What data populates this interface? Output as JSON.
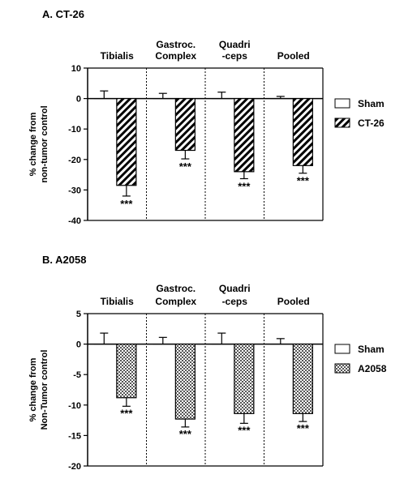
{
  "chart_data": [
    {
      "type": "bar",
      "title": "A.  CT-26",
      "ylabel": [
        "% change from",
        "non-tumor control"
      ],
      "ylim": [
        -40,
        10
      ],
      "yticks": [
        "10",
        "0",
        "-10",
        "-20",
        "-30",
        "-40"
      ],
      "categories": [
        [
          "Tibialis"
        ],
        [
          "Gastroc.",
          "Complex"
        ],
        [
          "Quadri",
          "-ceps"
        ],
        [
          "Pooled"
        ]
      ],
      "series": [
        {
          "name": "Sham",
          "values": [
            0,
            0,
            0,
            0
          ],
          "error": [
            2.5,
            1.7,
            2.1,
            0.7
          ],
          "fill": "white"
        },
        {
          "name": "CT-26",
          "values": [
            -28.5,
            -17,
            -24,
            -22
          ],
          "error": [
            3.5,
            2.8,
            2.3,
            2.5
          ],
          "fill": "stripes"
        }
      ],
      "annotations": [
        "***",
        "***",
        "***",
        "***"
      ],
      "legend": "right"
    },
    {
      "type": "bar",
      "title": "B.  A2058",
      "ylabel": [
        "% change from",
        "Non-Tumor control"
      ],
      "ylim": [
        -20,
        5
      ],
      "yticks": [
        "5",
        "0",
        "-5",
        "-10",
        "-15",
        "-20"
      ],
      "categories": [
        [
          "Tibialis"
        ],
        [
          "Gastroc.",
          "Complex"
        ],
        [
          "Quadri",
          "-ceps"
        ],
        [
          "Pooled"
        ]
      ],
      "series": [
        {
          "name": "Sham",
          "values": [
            0,
            0,
            0,
            0
          ],
          "error": [
            1.8,
            1.1,
            1.8,
            0.9
          ],
          "fill": "white"
        },
        {
          "name": "A2058",
          "values": [
            -8.8,
            -12.3,
            -11.4,
            -11.4
          ],
          "error": [
            1.4,
            1.3,
            1.6,
            1.3
          ],
          "fill": "checker"
        }
      ],
      "annotations": [
        "***",
        "***",
        "***",
        "***"
      ],
      "legend": "right"
    }
  ]
}
